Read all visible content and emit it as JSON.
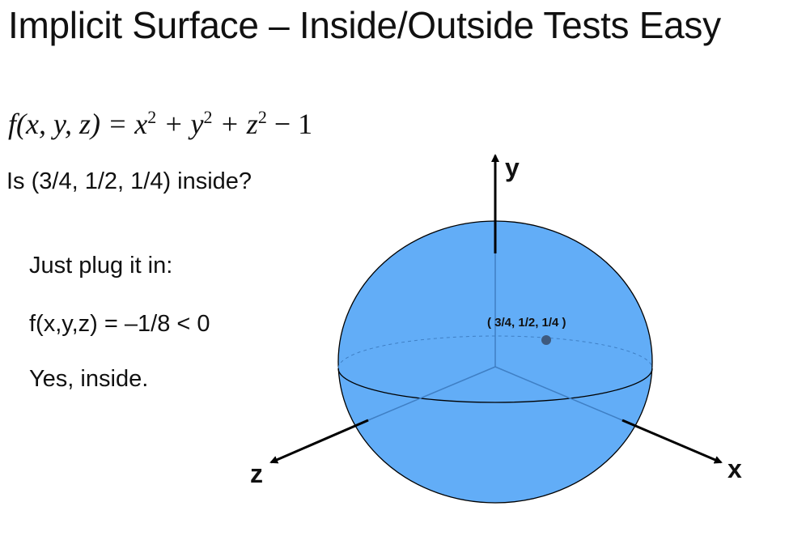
{
  "title": "Implicit Surface – Inside/Outside Tests Easy",
  "formula": {
    "lhs": "f(x, y, z) = x",
    "sq": "2",
    "plus_y": " + y",
    "plus_z": " + z",
    "minus": " − 1"
  },
  "question": "Is (3/4, 1/2, 1/4) inside?",
  "steps": [
    "Just plug it in:",
    "f(x,y,z) = –1/8 < 0",
    "Yes, inside."
  ],
  "diagram": {
    "point_label": "( 3/4, 1/2, 1/4 )",
    "axis_x": "x",
    "axis_y": "y",
    "axis_z": "z",
    "sphere_color": "#62adf7",
    "point_color": "#3e5a7e"
  }
}
